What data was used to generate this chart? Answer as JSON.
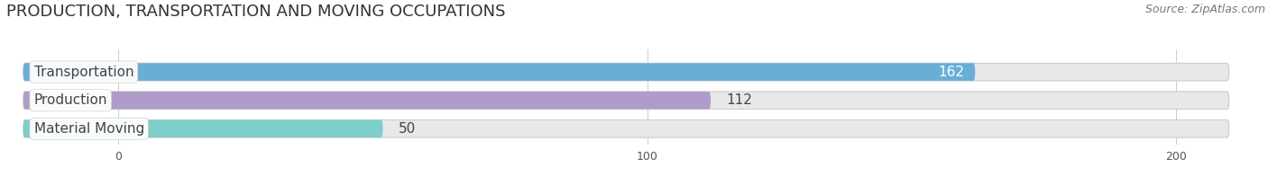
{
  "title": "PRODUCTION, TRANSPORTATION AND MOVING OCCUPATIONS",
  "source": "Source: ZipAtlas.com",
  "categories": [
    "Transportation",
    "Production",
    "Material Moving"
  ],
  "values": [
    162,
    112,
    50
  ],
  "bar_colors": [
    "#6aaed6",
    "#b09cc8",
    "#7ececa"
  ],
  "bar_labels": [
    "162",
    "112",
    "50"
  ],
  "xlim_data": [
    0,
    200
  ],
  "xticks": [
    0,
    100,
    200
  ],
  "background_color": "#ffffff",
  "bar_bg_color": "#e8e8e8",
  "title_fontsize": 13,
  "source_fontsize": 9,
  "label_fontsize": 11,
  "cat_fontsize": 11
}
